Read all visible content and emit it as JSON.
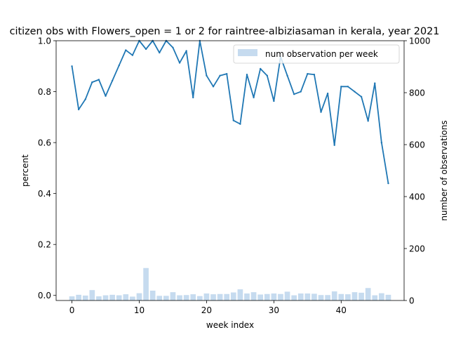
{
  "chart_data": {
    "type": "line+bar",
    "title": "citizen obs with Flowers_open = 1 or 2 for raintree-albiziasaman in kerala, year 2021",
    "xlabel": "week index",
    "ylabel": "percent",
    "y2label": "number of observations",
    "xlim": [
      -2.35,
      49.35
    ],
    "ylim": [
      -0.02,
      1.0
    ],
    "y2lim": [
      0,
      1000
    ],
    "xticks": [
      0,
      10,
      20,
      30,
      40
    ],
    "xtick_labels": [
      "0",
      "10",
      "20",
      "30",
      "40"
    ],
    "yticks": [
      0.0,
      0.2,
      0.4,
      0.6,
      0.8,
      1.0
    ],
    "ytick_labels": [
      "0.0",
      "0.2",
      "0.4",
      "0.6",
      "0.8",
      "1.0"
    ],
    "y2ticks": [
      0,
      200,
      400,
      600,
      800,
      1000
    ],
    "y2tick_labels": [
      "0",
      "200",
      "400",
      "600",
      "800",
      "1000"
    ],
    "legend": {
      "position": "top-right",
      "entries": [
        "num observation per week"
      ]
    },
    "line_color": "#1f77b4",
    "bar_color": "#c6dbef",
    "weeks": [
      0,
      1,
      2,
      3,
      4,
      5,
      6,
      7,
      8,
      9,
      10,
      11,
      12,
      13,
      14,
      15,
      16,
      17,
      18,
      19,
      20,
      21,
      22,
      23,
      24,
      25,
      26,
      27,
      28,
      29,
      30,
      31,
      32,
      33,
      34,
      35,
      36,
      37,
      38,
      39,
      40,
      41,
      42,
      43,
      44,
      45,
      46,
      47
    ],
    "percent": [
      0.9,
      0.73,
      0.77,
      0.837,
      0.847,
      0.783,
      0.843,
      0.903,
      0.963,
      0.943,
      1.0,
      0.967,
      1.0,
      0.953,
      1.0,
      0.973,
      0.913,
      0.96,
      0.777,
      1.0,
      0.863,
      0.82,
      0.863,
      0.87,
      0.687,
      0.673,
      0.867,
      0.777,
      0.89,
      0.863,
      0.763,
      0.937,
      0.863,
      0.79,
      0.8,
      0.87,
      0.867,
      0.72,
      0.793,
      0.59,
      0.82,
      0.82,
      0.8,
      0.78,
      0.685,
      0.833,
      0.6,
      0.44
    ],
    "num_observations": [
      16,
      22,
      19,
      40,
      16,
      20,
      22,
      20,
      24,
      15,
      28,
      125,
      38,
      18,
      18,
      32,
      20,
      21,
      24,
      17,
      27,
      24,
      25,
      25,
      31,
      43,
      27,
      32,
      23,
      25,
      27,
      25,
      34,
      20,
      27,
      27,
      26,
      21,
      21,
      35,
      25,
      24,
      32,
      30,
      48,
      20,
      28,
      22
    ]
  }
}
